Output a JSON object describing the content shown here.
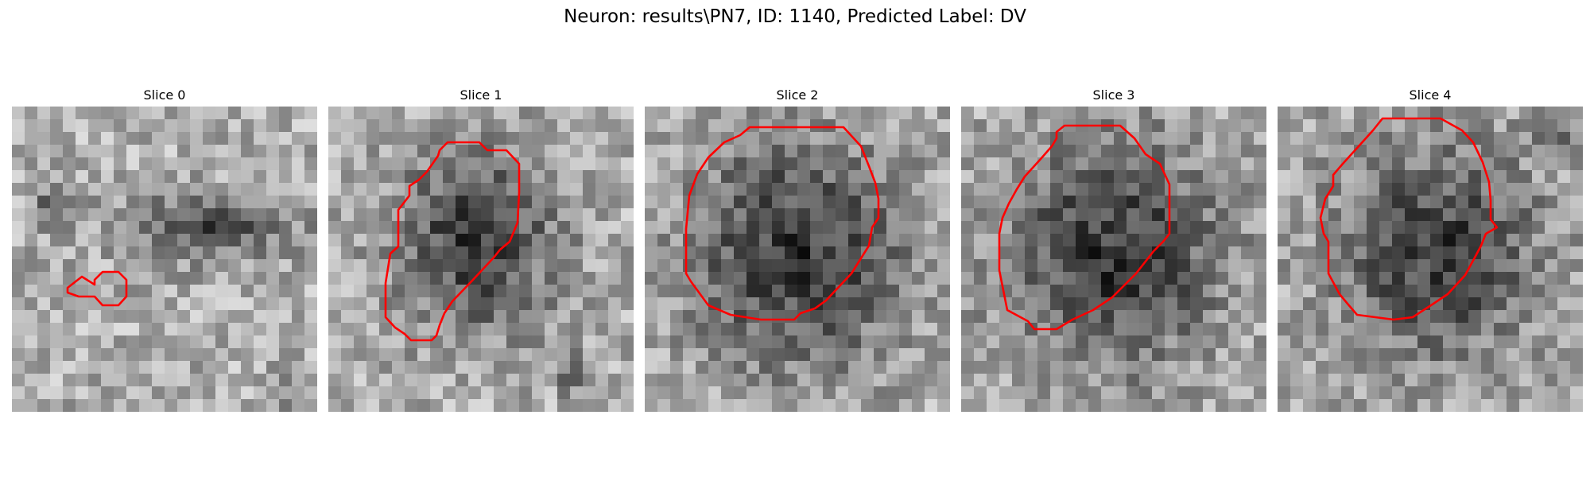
{
  "figure": {
    "title": "Neuron: results\\PN7, ID: 1140, Predicted Label: DV",
    "contour_color": "#ff0000"
  },
  "panels": [
    {
      "title": "Slice 0"
    },
    {
      "title": "Slice 1"
    },
    {
      "title": "Slice 2"
    },
    {
      "title": "Slice 3"
    },
    {
      "title": "Slice 4"
    }
  ]
}
